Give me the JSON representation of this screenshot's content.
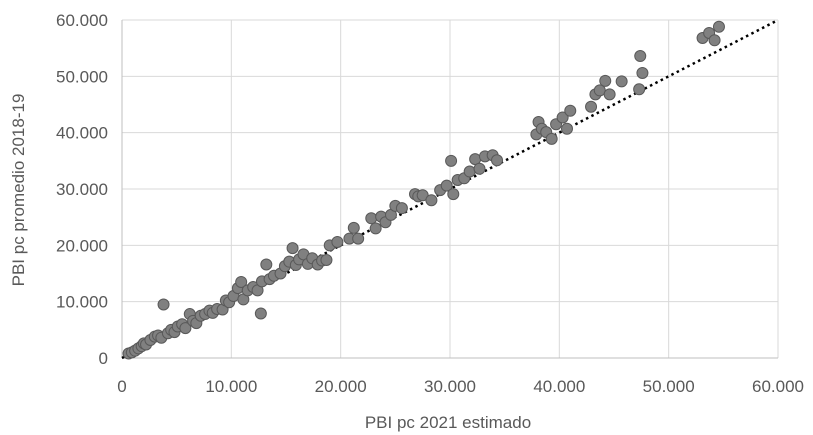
{
  "chart_data": {
    "type": "scatter",
    "title": "",
    "xlabel": "PBI pc 2021 estimado",
    "ylabel": "PBI pc promedio 2018-19",
    "xlim": [
      0,
      60000
    ],
    "ylim": [
      0,
      60000
    ],
    "x_ticks": [
      0,
      10000,
      20000,
      30000,
      40000,
      50000,
      60000
    ],
    "y_ticks": [
      0,
      10000,
      20000,
      30000,
      40000,
      50000,
      60000
    ],
    "x_tick_labels": [
      "0",
      "10.000",
      "20.000",
      "30.000",
      "40.000",
      "50.000",
      "60.000"
    ],
    "y_tick_labels": [
      "0",
      "10.000",
      "20.000",
      "30.000",
      "40.000",
      "50.000",
      "60.000"
    ],
    "grid": true,
    "legend": "none",
    "trendline": {
      "style": "dotted",
      "from": [
        0,
        0
      ],
      "to": [
        60000,
        60000
      ]
    },
    "colors": {
      "marker_fill": "#808080",
      "marker_stroke": "#595959",
      "grid": "#d9d9d9",
      "trendline": "#000000"
    },
    "points": [
      [
        600,
        800
      ],
      [
        900,
        1000
      ],
      [
        1200,
        1300
      ],
      [
        1500,
        1700
      ],
      [
        1800,
        2100
      ],
      [
        2000,
        2600
      ],
      [
        2200,
        2400
      ],
      [
        2600,
        3200
      ],
      [
        3000,
        3800
      ],
      [
        3300,
        4000
      ],
      [
        3600,
        3600
      ],
      [
        3800,
        9500
      ],
      [
        4200,
        4400
      ],
      [
        4500,
        5000
      ],
      [
        4800,
        4600
      ],
      [
        5100,
        5600
      ],
      [
        5500,
        6000
      ],
      [
        5800,
        5300
      ],
      [
        6200,
        7800
      ],
      [
        6500,
        6600
      ],
      [
        6800,
        6200
      ],
      [
        7200,
        7500
      ],
      [
        7600,
        7800
      ],
      [
        8000,
        8400
      ],
      [
        8300,
        8000
      ],
      [
        8700,
        8700
      ],
      [
        9200,
        8600
      ],
      [
        9500,
        10200
      ],
      [
        9800,
        9900
      ],
      [
        10200,
        11000
      ],
      [
        10600,
        12400
      ],
      [
        10900,
        13500
      ],
      [
        11100,
        10400
      ],
      [
        11500,
        12000
      ],
      [
        12000,
        12600
      ],
      [
        12400,
        12000
      ],
      [
        12700,
        7900
      ],
      [
        12800,
        13600
      ],
      [
        13200,
        16600
      ],
      [
        13500,
        14000
      ],
      [
        13900,
        14600
      ],
      [
        14500,
        15000
      ],
      [
        14900,
        16300
      ],
      [
        15300,
        17100
      ],
      [
        15600,
        19500
      ],
      [
        15900,
        16500
      ],
      [
        16200,
        17500
      ],
      [
        16600,
        18400
      ],
      [
        17000,
        16700
      ],
      [
        17400,
        17700
      ],
      [
        17900,
        16600
      ],
      [
        18300,
        17300
      ],
      [
        18700,
        17400
      ],
      [
        19000,
        20000
      ],
      [
        19700,
        20600
      ],
      [
        20800,
        21200
      ],
      [
        21200,
        23100
      ],
      [
        21600,
        21200
      ],
      [
        22800,
        24800
      ],
      [
        23200,
        23000
      ],
      [
        23700,
        25100
      ],
      [
        24100,
        24100
      ],
      [
        24600,
        25400
      ],
      [
        25000,
        27000
      ],
      [
        25600,
        26600
      ],
      [
        26800,
        29100
      ],
      [
        27100,
        28700
      ],
      [
        27500,
        28900
      ],
      [
        28300,
        28000
      ],
      [
        29100,
        29800
      ],
      [
        29700,
        30600
      ],
      [
        30100,
        35000
      ],
      [
        30300,
        29100
      ],
      [
        30700,
        31600
      ],
      [
        31300,
        31900
      ],
      [
        31800,
        33100
      ],
      [
        32300,
        35300
      ],
      [
        32700,
        33600
      ],
      [
        33200,
        35800
      ],
      [
        33900,
        36000
      ],
      [
        34300,
        35100
      ],
      [
        37900,
        39700
      ],
      [
        38100,
        41900
      ],
      [
        38400,
        40700
      ],
      [
        38800,
        40100
      ],
      [
        39300,
        38900
      ],
      [
        39700,
        41500
      ],
      [
        40300,
        42700
      ],
      [
        40700,
        40700
      ],
      [
        41000,
        43900
      ],
      [
        42900,
        44600
      ],
      [
        43300,
        46800
      ],
      [
        43700,
        47500
      ],
      [
        44200,
        49200
      ],
      [
        44600,
        46800
      ],
      [
        45700,
        49100
      ],
      [
        47300,
        47700
      ],
      [
        47400,
        53600
      ],
      [
        47600,
        50600
      ],
      [
        53100,
        56800
      ],
      [
        53700,
        57700
      ],
      [
        54200,
        56400
      ],
      [
        54600,
        58800
      ]
    ]
  }
}
